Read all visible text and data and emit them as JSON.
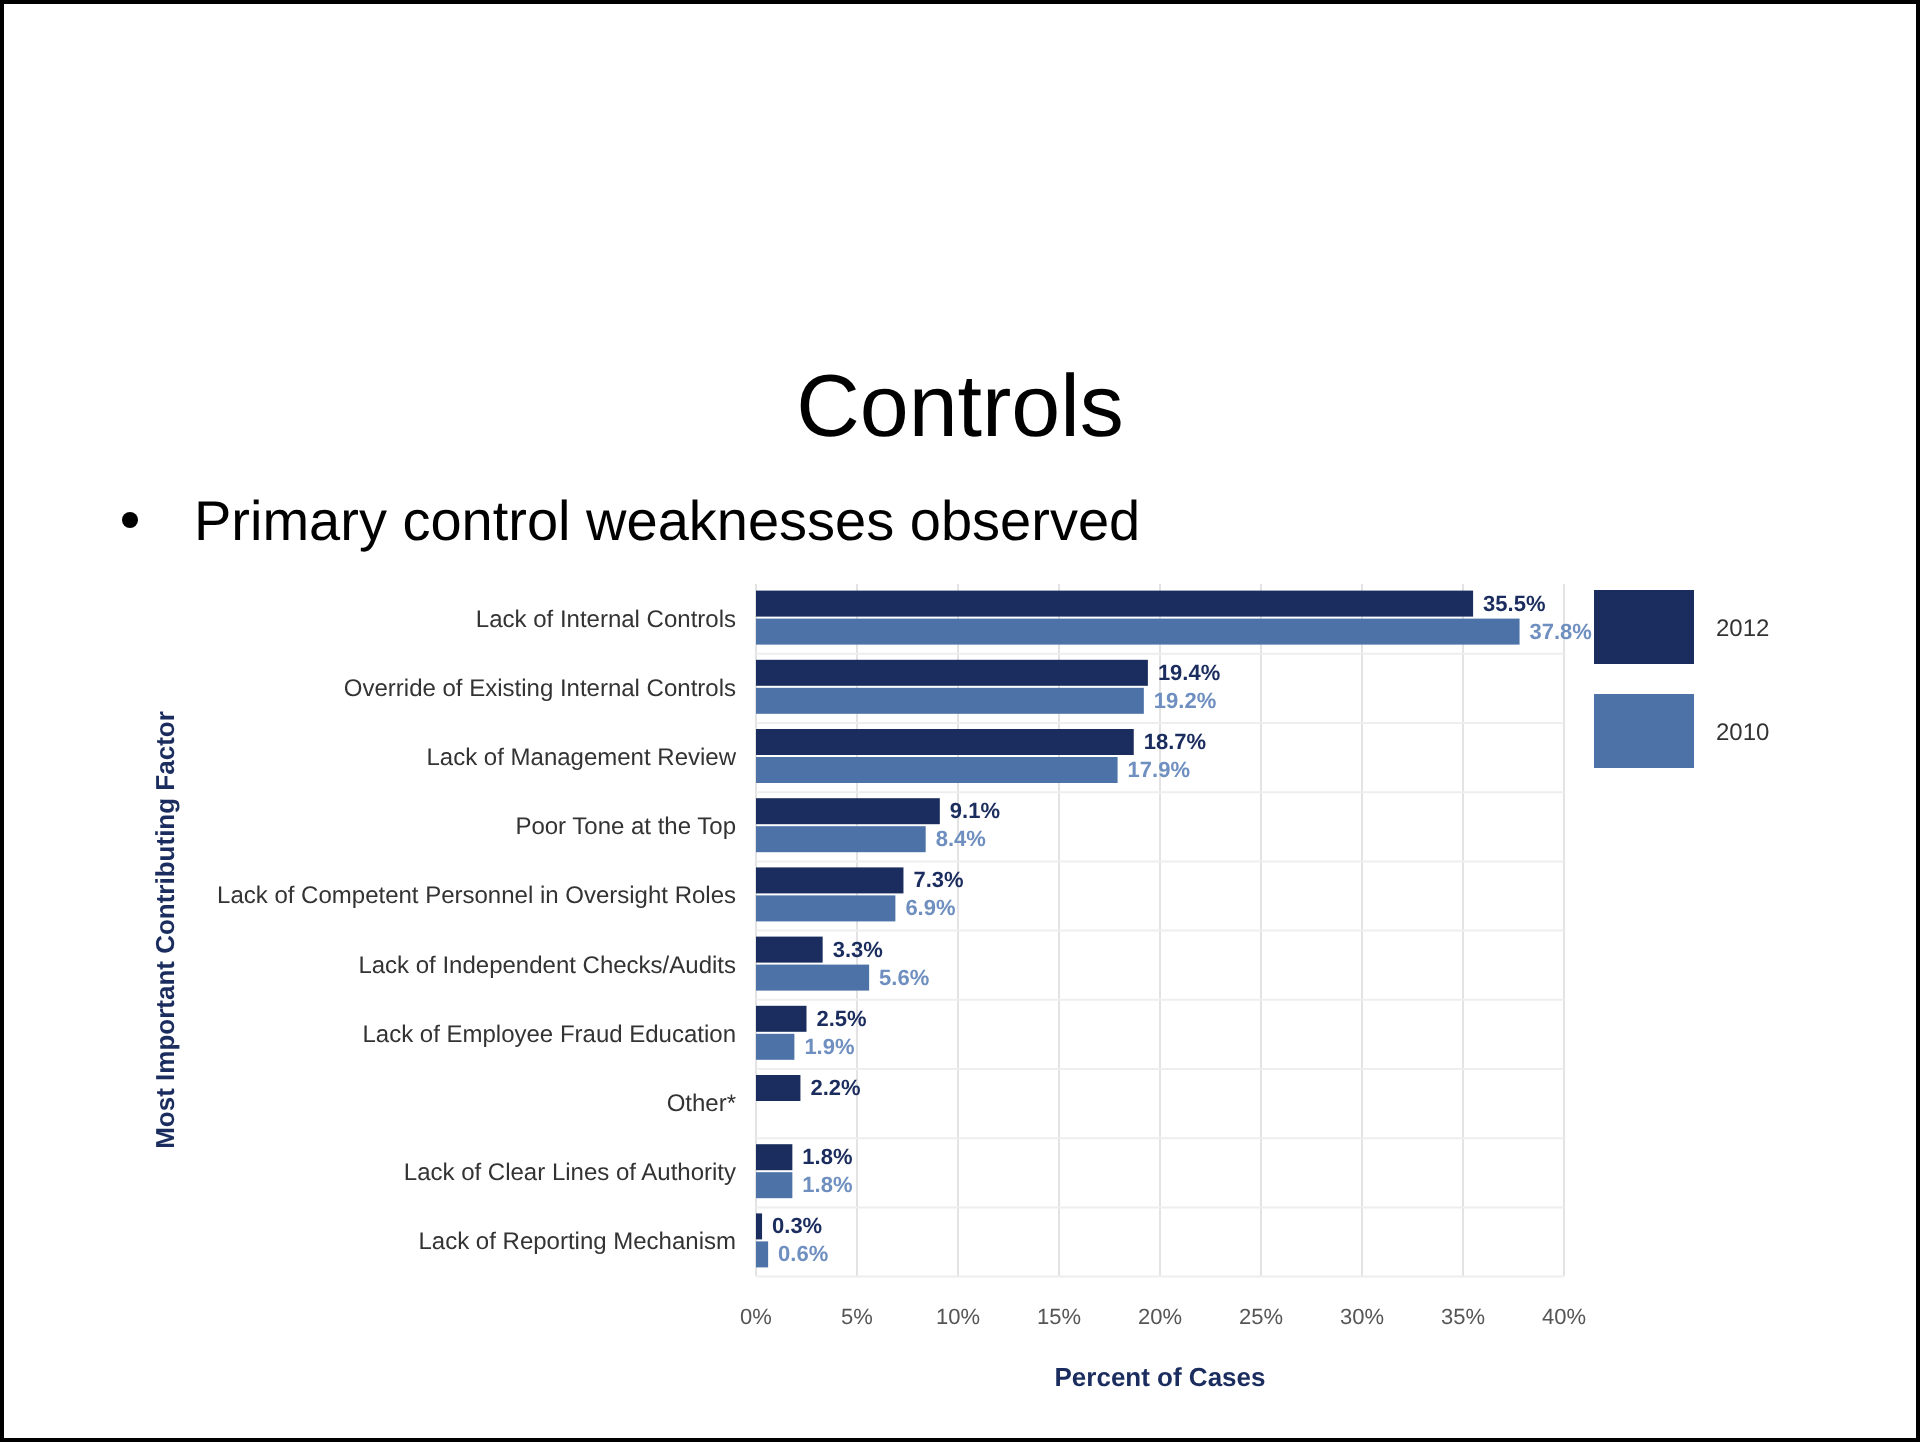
{
  "chart_data": {
    "type": "bar",
    "orientation": "horizontal",
    "title": "Controls",
    "subtitle": "Primary control weaknesses observed",
    "xlabel": "Percent of Cases",
    "ylabel": "Most Important Contributing Factor",
    "categories": [
      "Lack of Internal Controls",
      "Override of Existing Internal Controls",
      "Lack of Management Review",
      "Poor Tone at the Top",
      "Lack of Competent Personnel in Oversight Roles",
      "Lack of Independent Checks/Audits",
      "Lack of Employee Fraud Education",
      "Other*",
      "Lack of Clear Lines of Authority",
      "Lack of Reporting Mechanism"
    ],
    "series": [
      {
        "name": "2012",
        "color": "#1b2d5e",
        "values": [
          35.5,
          19.4,
          18.7,
          9.1,
          7.3,
          3.3,
          2.5,
          2.2,
          1.8,
          0.3
        ],
        "value_labels": [
          "35.5%",
          "19.4%",
          "18.7%",
          "9.1%",
          "7.3%",
          "3.3%",
          "2.5%",
          "2.2%",
          "1.8%",
          "0.3%"
        ]
      },
      {
        "name": "2010",
        "color": "#4d72a8",
        "values": [
          37.8,
          19.2,
          17.9,
          8.4,
          6.9,
          5.6,
          1.9,
          null,
          1.8,
          0.6
        ],
        "value_labels": [
          "37.8%",
          "19.2%",
          "17.9%",
          "8.4%",
          "6.9%",
          "5.6%",
          "1.9%",
          null,
          "1.8%",
          "0.6%"
        ]
      }
    ],
    "xlim": [
      0,
      40
    ],
    "xticks": [
      {
        "value": 0,
        "label": "0%"
      },
      {
        "value": 5,
        "label": "5%"
      },
      {
        "value": 10,
        "label": "10%"
      },
      {
        "value": 15,
        "label": "15%"
      },
      {
        "value": 20,
        "label": "20%"
      },
      {
        "value": 25,
        "label": "25%"
      },
      {
        "value": 30,
        "label": "30%"
      },
      {
        "value": 35,
        "label": "35%"
      },
      {
        "value": 40,
        "label": "40%"
      }
    ],
    "grid": "x",
    "legend": "right"
  }
}
